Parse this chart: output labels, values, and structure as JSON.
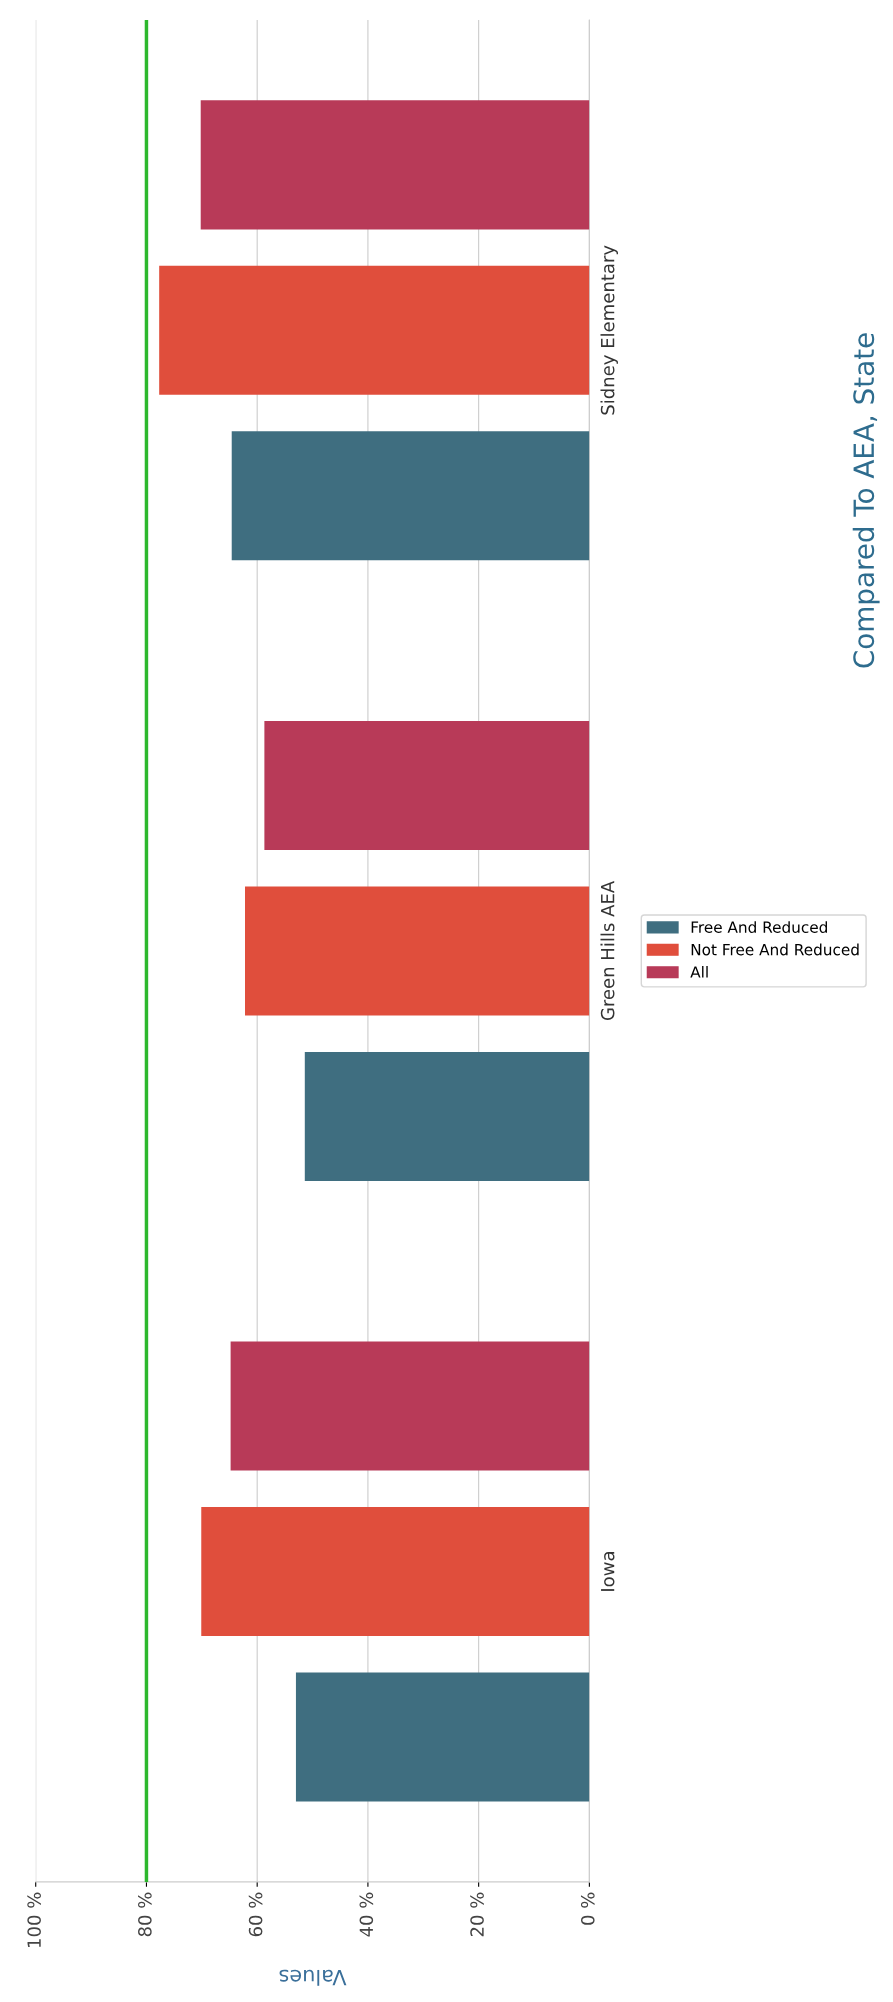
{
  "chart_data": {
    "type": "bar",
    "orientation": "horizontal",
    "title": "Compared To AEA, State",
    "xlabel": "Values",
    "categories": [
      "Sidney Elementary",
      "Green Hills AEA",
      "Iowa"
    ],
    "series": [
      {
        "name": "Free And Reduced",
        "color": "#3f6e80",
        "values": [
          64.6,
          51.4,
          53
        ]
      },
      {
        "name": "Not Free And Reduced",
        "color": "#e04e3c",
        "values": [
          77.7,
          62.2,
          70.1
        ]
      },
      {
        "name": "All",
        "color": "#b83a58",
        "values": [
          70.2,
          58.7,
          64.8
        ]
      }
    ],
    "xlim": [
      100,
      0
    ],
    "xticks": [
      {
        "value": 100,
        "label": "100 %"
      },
      {
        "value": 80,
        "label": "80 %"
      },
      {
        "value": 60,
        "label": "60 %"
      },
      {
        "value": 40,
        "label": "40 %"
      },
      {
        "value": 20,
        "label": "20 %"
      },
      {
        "value": 0,
        "label": "0 %"
      }
    ],
    "ref_lines": [
      {
        "axis": "x",
        "value": 80,
        "color": "#2db82d"
      }
    ],
    "grid": "x",
    "legend": "right"
  }
}
